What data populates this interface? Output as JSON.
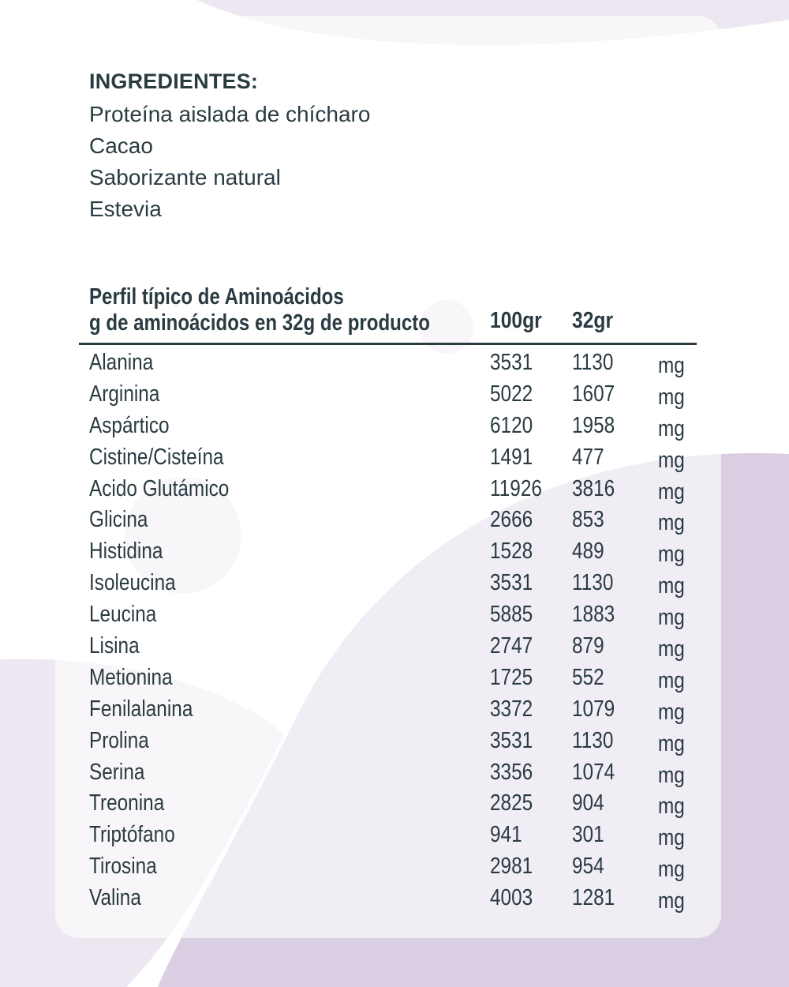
{
  "ingredients": {
    "title": "INGREDIENTES:",
    "items": [
      "Proteína aislada de chícharo",
      "Cacao",
      "Saborizante natural",
      "Estevia"
    ]
  },
  "amino_table": {
    "title": "Perfil típico de Aminoácidos",
    "subtitle": "g de aminoácidos en 32g de producto",
    "col_100": "100gr",
    "col_32": "32gr",
    "rows": [
      {
        "name": "Alanina",
        "v100": "3531",
        "v32": "1130",
        "unit": "mg"
      },
      {
        "name": "Arginina",
        "v100": "5022",
        "v32": "1607",
        "unit": "mg"
      },
      {
        "name": "Aspártico",
        "v100": "6120",
        "v32": "1958",
        "unit": "mg"
      },
      {
        "name": "Cistine/Cisteína",
        "v100": "1491",
        "v32": "477",
        "unit": "mg"
      },
      {
        "name": "Acido Glutámico",
        "v100": "11926",
        "v32": "3816",
        "unit": "mg"
      },
      {
        "name": "Glicina",
        "v100": "2666",
        "v32": "853",
        "unit": "mg"
      },
      {
        "name": "Histidina",
        "v100": "1528",
        "v32": "489",
        "unit": "mg"
      },
      {
        "name": "Isoleucina",
        "v100": "3531",
        "v32": "1130",
        "unit": "mg"
      },
      {
        "name": "Leucina",
        "v100": "5885",
        "v32": "1883",
        "unit": "mg"
      },
      {
        "name": "Lisina",
        "v100": "2747",
        "v32": "879",
        "unit": "mg"
      },
      {
        "name": "Metionina",
        "v100": "1725",
        "v32": "552",
        "unit": "mg"
      },
      {
        "name": "Fenilalanina",
        "v100": "3372",
        "v32": "1079",
        "unit": "mg"
      },
      {
        "name": "Prolina",
        "v100": "3531",
        "v32": "1130",
        "unit": "mg"
      },
      {
        "name": "Serina",
        "v100": "3356",
        "v32": "1074",
        "unit": "mg"
      },
      {
        "name": "Treonina",
        "v100": "2825",
        "v32": "904",
        "unit": "mg"
      },
      {
        "name": "Triptófano",
        "v100": "941",
        "v32": "301",
        "unit": "mg"
      },
      {
        "name": "Tirosina",
        "v100": "2981",
        "v32": "954",
        "unit": "mg"
      },
      {
        "name": "Valina",
        "v100": "4003",
        "v32": "1281",
        "unit": "mg"
      }
    ]
  },
  "colors": {
    "text": "#2a3b42",
    "lavender_dark": "#dacfe2",
    "lavender_light": "#ece7f0"
  }
}
